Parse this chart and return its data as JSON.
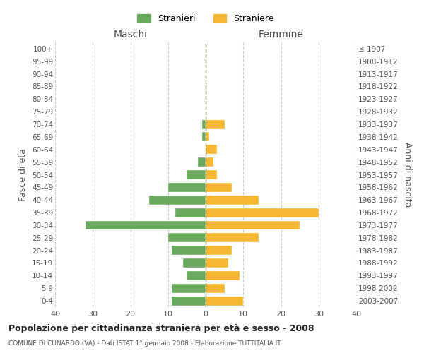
{
  "age_groups": [
    "0-4",
    "5-9",
    "10-14",
    "15-19",
    "20-24",
    "25-29",
    "30-34",
    "35-39",
    "40-44",
    "45-49",
    "50-54",
    "55-59",
    "60-64",
    "65-69",
    "70-74",
    "75-79",
    "80-84",
    "85-89",
    "90-94",
    "95-99",
    "100+"
  ],
  "birth_years": [
    "2003-2007",
    "1998-2002",
    "1993-1997",
    "1988-1992",
    "1983-1987",
    "1978-1982",
    "1973-1977",
    "1968-1972",
    "1963-1967",
    "1958-1962",
    "1953-1957",
    "1948-1952",
    "1943-1947",
    "1938-1942",
    "1933-1937",
    "1928-1932",
    "1923-1927",
    "1918-1922",
    "1913-1917",
    "1908-1912",
    "≤ 1907"
  ],
  "maschi": [
    9,
    9,
    5,
    6,
    9,
    10,
    32,
    8,
    15,
    10,
    5,
    2,
    0,
    1,
    1,
    0,
    0,
    0,
    0,
    0,
    0
  ],
  "femmine": [
    10,
    5,
    9,
    6,
    7,
    14,
    25,
    30,
    14,
    7,
    3,
    2,
    3,
    1,
    5,
    0,
    0,
    0,
    0,
    0,
    0
  ],
  "color_maschi": "#6aaa5c",
  "color_femmine": "#f5b731",
  "title": "Popolazione per cittadinanza straniera per età e sesso - 2008",
  "subtitle": "COMUNE DI CUNARDO (VA) - Dati ISTAT 1° gennaio 2008 - Elaborazione TUTTITALIA.IT",
  "xlabel_left": "Maschi",
  "xlabel_right": "Femmine",
  "ylabel_left": "Fasce di età",
  "ylabel_right": "Anni di nascita",
  "xlim": 40,
  "legend_stranieri": "Stranieri",
  "legend_straniere": "Straniere",
  "background_color": "#ffffff",
  "grid_color": "#cccccc"
}
